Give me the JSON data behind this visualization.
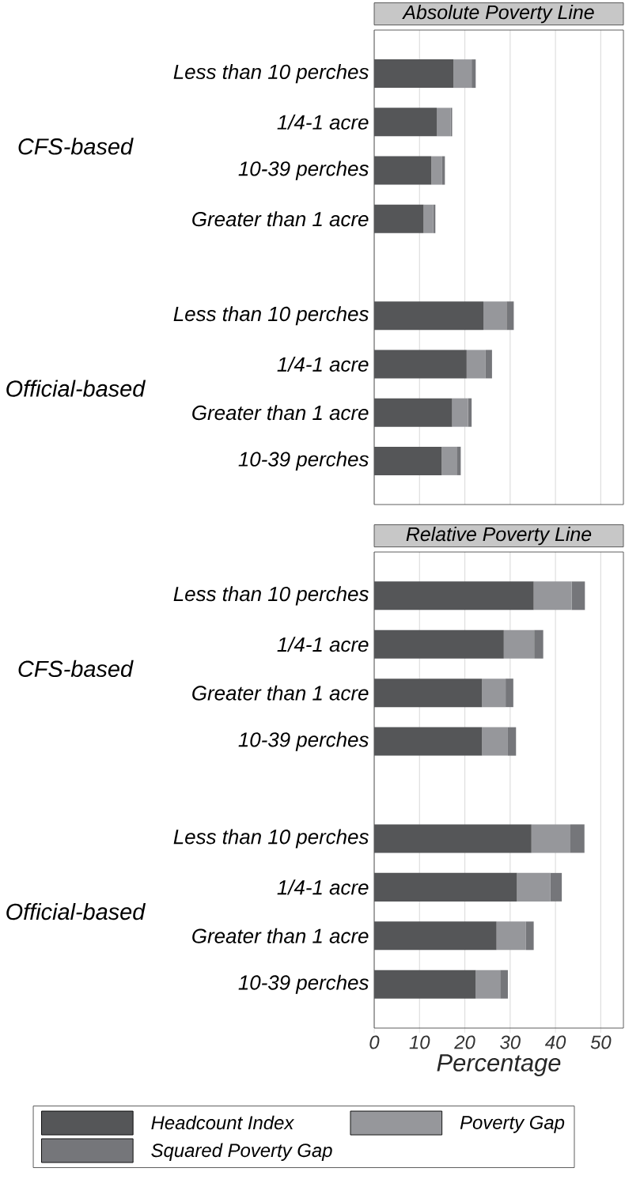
{
  "chart_data": [
    {
      "type": "bar",
      "orientation": "horizontal",
      "stacked": true,
      "title": "Absolute Poverty Line",
      "categories": [
        "Less than 10 perches",
        "1/4-1 acre",
        "10-39 perches",
        "Greater than 1 acre",
        null,
        "Less than 10 perches",
        "1/4-1 acre",
        "Greater than 1 acre",
        "10-39 perches"
      ],
      "series": [
        {
          "color": "#555658",
          "values": [
            17.5,
            13.8,
            12.6,
            10.9,
            null,
            24.1,
            20.4,
            17.2,
            14.9
          ]
        },
        {
          "color": "#96979b",
          "values": [
            4.0,
            3.1,
            2.4,
            2.1,
            null,
            5.1,
            4.2,
            3.5,
            3.3
          ]
        },
        {
          "color": "#75767a",
          "values": [
            0.9,
            0.3,
            0.6,
            0.5,
            null,
            1.6,
            1.4,
            0.8,
            0.9
          ]
        }
      ],
      "annotations": [
        "CFS-based",
        "Official-based"
      ],
      "xlim": [
        0,
        55
      ],
      "xticks": [
        0,
        10,
        20,
        30,
        40,
        50
      ],
      "grid": "x",
      "tick_labels": "y"
    },
    {
      "type": "bar",
      "orientation": "horizontal",
      "stacked": true,
      "title": "Relative Poverty Line",
      "xlabel": "Percentage",
      "categories": [
        "Less than 10 perches",
        "1/4-1 acre",
        "Greater than 1 acre",
        "10-39 perches",
        null,
        "Less than 10 perches",
        "1/4-1 acre",
        "Greater than 1 acre",
        "10-39 perches"
      ],
      "series": [
        {
          "name": "Headcount Index",
          "color": "#555658",
          "values": [
            35.2,
            28.6,
            23.8,
            23.8,
            null,
            34.7,
            31.5,
            27.0,
            22.4
          ]
        },
        {
          "name": "Poverty Gap",
          "color": "#96979b",
          "values": [
            8.4,
            6.7,
            5.2,
            5.7,
            null,
            8.6,
            7.4,
            6.5,
            5.4
          ]
        },
        {
          "name": "Squared Poverty Gap",
          "color": "#75767a",
          "values": [
            2.9,
            2.0,
            1.7,
            1.8,
            null,
            3.1,
            2.5,
            1.7,
            1.7
          ]
        }
      ],
      "annotations": [
        "CFS-based",
        "Official-based"
      ],
      "xlim": [
        0,
        55
      ],
      "xticks": [
        0,
        10,
        20,
        30,
        40,
        50
      ],
      "grid": "x",
      "legend": "bottom"
    }
  ]
}
